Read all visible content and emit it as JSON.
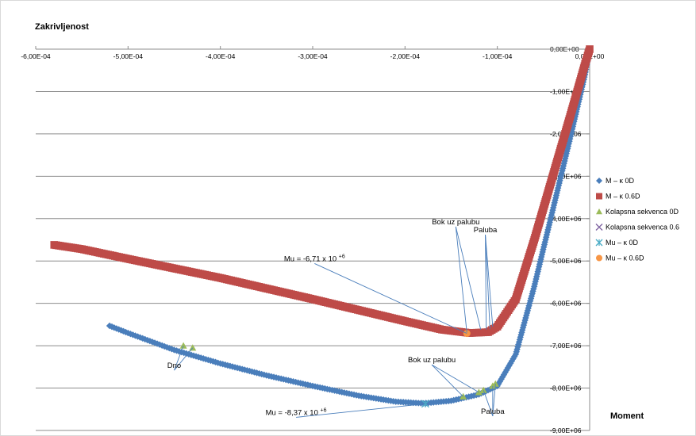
{
  "chart_data": {
    "type": "scatter",
    "title": "Zakrivljenost",
    "xlabel": "Zakrivljenost",
    "ylabel": "Moment",
    "xlim": [
      -0.0006,
      0
    ],
    "ylim": [
      -9000000,
      0
    ],
    "x_ticks": [
      "-6,00E-04",
      "-5,00E-04",
      "-4,00E-04",
      "-3,00E-04",
      "-2,00E-04",
      "-1,00E-04",
      "0,00E+00"
    ],
    "y_ticks": [
      "0,00E+00",
      "-1,00E+06",
      "-2,00E+06",
      "-3,00E+06",
      "-4,00E+06",
      "-5,00E+06",
      "-6,00E+06",
      "-7,00E+06",
      "-8,00E+06",
      "-9,00E+06"
    ],
    "grid": "horizontal",
    "legend_position": "right",
    "series": [
      {
        "name": "M – κ 0D",
        "color": "#4a7ebb",
        "marker": "diamond",
        "points": [
          [
            0,
            0
          ],
          [
            -5e-06,
            -600000
          ],
          [
            -2e-05,
            -2000000
          ],
          [
            -4e-05,
            -3800000
          ],
          [
            -6e-05,
            -5600000
          ],
          [
            -8e-05,
            -7200000
          ],
          [
            -0.0001,
            -7950000
          ],
          [
            -0.00012,
            -8150000
          ],
          [
            -0.00015,
            -8300000
          ],
          [
            -0.00018,
            -8360000
          ],
          [
            -0.00021,
            -8320000
          ],
          [
            -0.00025,
            -8180000
          ],
          [
            -0.0003,
            -7950000
          ],
          [
            -0.00035,
            -7700000
          ],
          [
            -0.0004,
            -7420000
          ],
          [
            -0.00045,
            -7100000
          ],
          [
            -0.0005,
            -6700000
          ],
          [
            -0.00052,
            -6530000
          ]
        ]
      },
      {
        "name": "M – κ 0.6D",
        "color": "#be4b48",
        "marker": "square",
        "points": [
          [
            0,
            0
          ],
          [
            -5e-06,
            -350000
          ],
          [
            -2e-05,
            -1500000
          ],
          [
            -4e-05,
            -3000000
          ],
          [
            -6e-05,
            -4500000
          ],
          [
            -8e-05,
            -5900000
          ],
          [
            -0.0001,
            -6550000
          ],
          [
            -0.00011,
            -6680000
          ],
          [
            -0.00013,
            -6700000
          ],
          [
            -0.00016,
            -6620000
          ],
          [
            -0.0002,
            -6420000
          ],
          [
            -0.0003,
            -5900000
          ],
          [
            -0.0004,
            -5400000
          ],
          [
            -0.0005,
            -4950000
          ],
          [
            -0.00055,
            -4720000
          ],
          [
            -0.00058,
            -4620000
          ]
        ]
      },
      {
        "name": "Kolapsna sekvenca 0D",
        "color": "#9bbb59",
        "marker": "triangle",
        "points": [
          [
            -0.000102,
            -7900000
          ],
          [
            -0.000105,
            -7950000
          ],
          [
            -0.000115,
            -8050000
          ],
          [
            -0.00012,
            -8100000
          ],
          [
            -0.000137,
            -8200000
          ],
          [
            -0.00044,
            -7000000
          ],
          [
            -0.00043,
            -7050000
          ]
        ]
      },
      {
        "name": "Kolapsna sekvenca 0.6",
        "color": "#8064a2",
        "marker": "x",
        "points": []
      },
      {
        "name": "Mu – κ 0D",
        "color": "#4bacc6",
        "marker": "star",
        "points": [
          [
            -0.000178,
            -8370000
          ]
        ]
      },
      {
        "name": "Mu – κ 0.6D",
        "color": "#f79646",
        "marker": "circle",
        "points": [
          [
            -0.000133,
            -6710000
          ]
        ]
      }
    ],
    "annotations": [
      {
        "text": "Bok uz palubu",
        "at": [
          -0.000145,
          -4190000
        ],
        "targets": [
          [
            -0.000133,
            -6690000
          ],
          [
            -0.000118,
            -6620000
          ]
        ]
      },
      {
        "text": "Paluba",
        "at": [
          -0.000113,
          -4380000
        ],
        "targets": [
          [
            -0.000112,
            -6620000
          ],
          [
            -0.000108,
            -6600000
          ],
          [
            -0.000105,
            -6550000
          ]
        ]
      },
      {
        "text": "Mu = -6,71 x 10 +6",
        "at": [
          -0.000298,
          -5060000
        ],
        "targets": [
          [
            -0.000133,
            -6710000
          ]
        ]
      },
      {
        "text": "Dno",
        "at": [
          -0.00045,
          -7580000
        ],
        "targets": [
          [
            -0.00044,
            -7000000
          ],
          [
            -0.00043,
            -7050000
          ]
        ]
      },
      {
        "text": "Bok uz palubu",
        "at": [
          -0.000171,
          -7450000
        ],
        "targets": [
          [
            -0.000137,
            -8200000
          ],
          [
            -0.00012,
            -8100000
          ]
        ]
      },
      {
        "text": "Paluba",
        "at": [
          -0.000105,
          -8660000
        ],
        "targets": [
          [
            -0.000115,
            -8050000
          ],
          [
            -0.000105,
            -7950000
          ],
          [
            -0.000102,
            -7900000
          ]
        ]
      },
      {
        "text": "Mu = -8,37 x 10 +6",
        "at": [
          -0.000318,
          -8690000
        ],
        "targets": [
          [
            -0.000178,
            -8370000
          ]
        ]
      }
    ]
  }
}
